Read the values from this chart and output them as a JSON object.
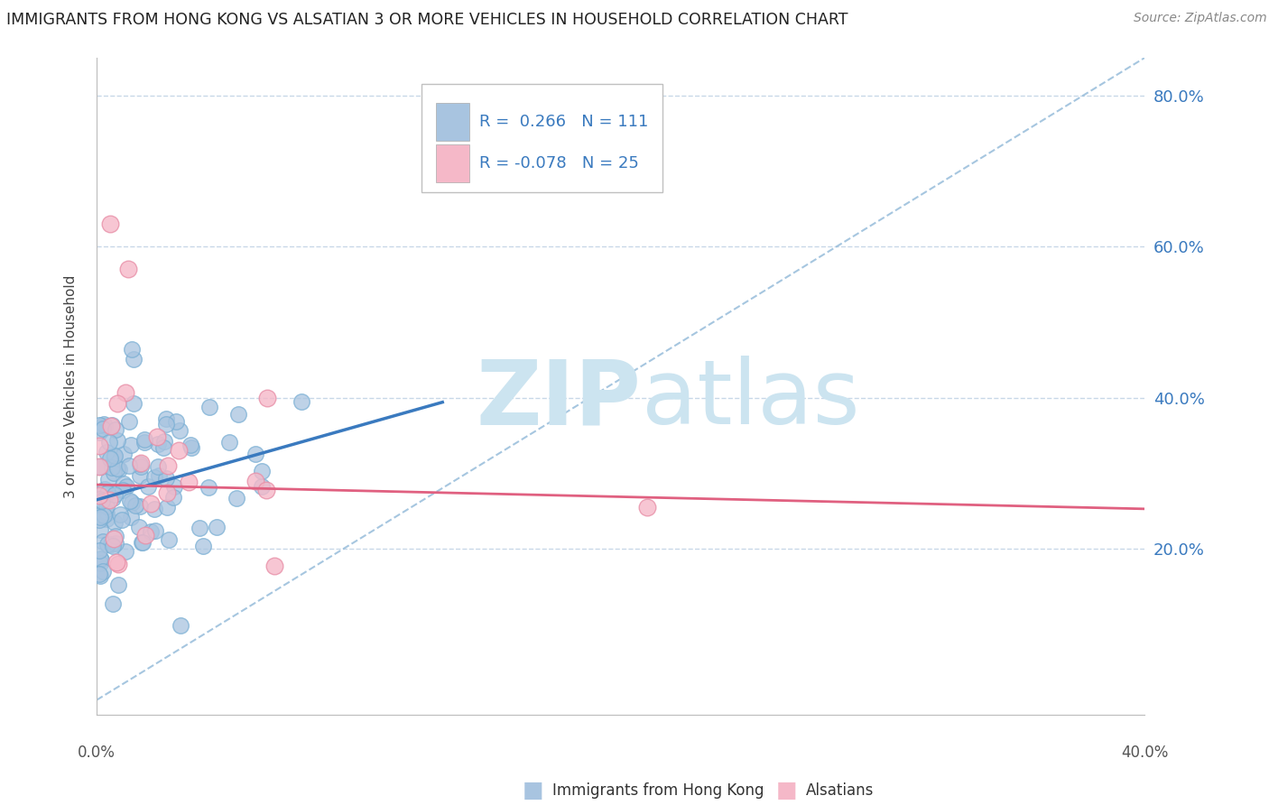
{
  "title": "IMMIGRANTS FROM HONG KONG VS ALSATIAN 3 OR MORE VEHICLES IN HOUSEHOLD CORRELATION CHART",
  "source": "Source: ZipAtlas.com",
  "ylabel": "3 or more Vehicles in Household",
  "x_min": 0.0,
  "x_max": 0.4,
  "y_min": -0.02,
  "y_max": 0.85,
  "y_ticks": [
    0.2,
    0.4,
    0.6,
    0.8
  ],
  "y_tick_labels": [
    "20.0%",
    "40.0%",
    "60.0%",
    "80.0%"
  ],
  "x_ticks": [
    0.0,
    0.05,
    0.1,
    0.15,
    0.2,
    0.25,
    0.3,
    0.35,
    0.4
  ],
  "legend_R1": "0.266",
  "legend_N1": "111",
  "legend_R2": "-0.078",
  "legend_N2": "25",
  "blue_color": "#a8c4e0",
  "blue_edge_color": "#7aafd4",
  "blue_line_color": "#3a7abf",
  "pink_color": "#f5b8c8",
  "pink_edge_color": "#e890a8",
  "pink_line_color": "#e06080",
  "ref_line_color": "#90b8d8",
  "watermark_zip": "ZIP",
  "watermark_atlas": "atlas",
  "watermark_color": "#cce4f0"
}
